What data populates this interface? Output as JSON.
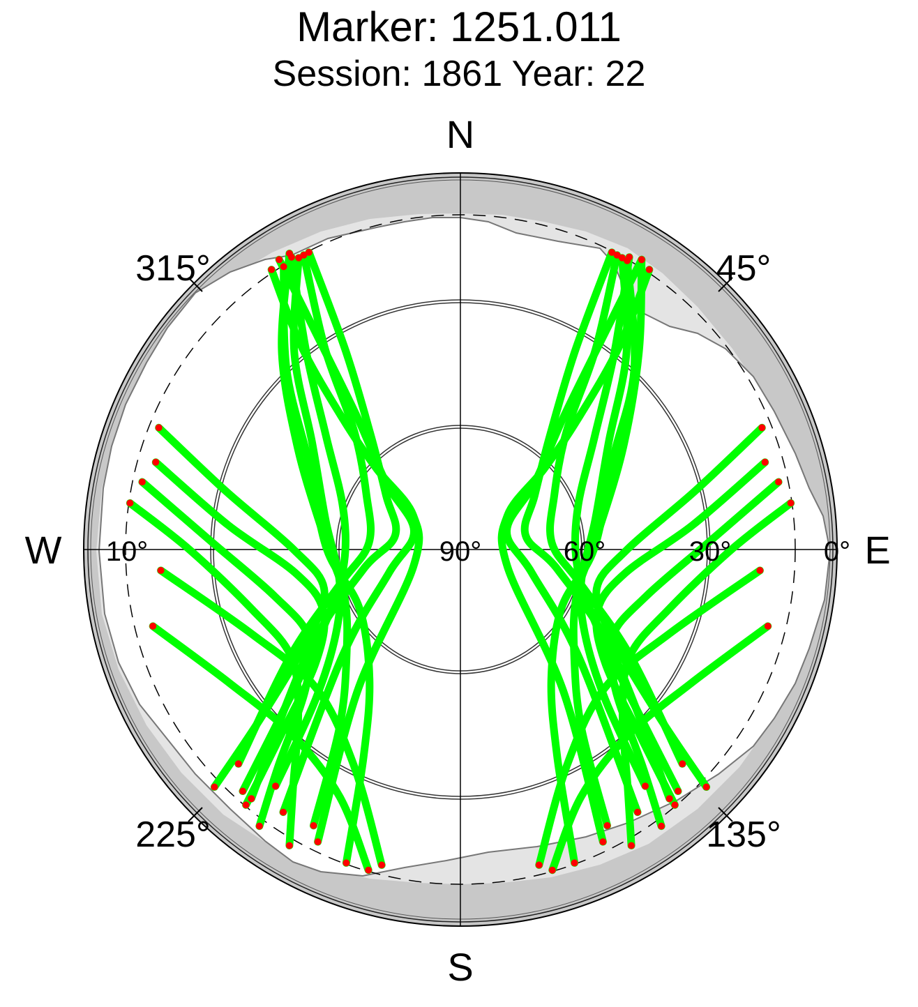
{
  "header": {
    "title": "Marker: 1251.011",
    "subtitle": "Session: 1861 Year: 22"
  },
  "chart_data": {
    "type": "scatter",
    "projection": "polar-skyplot",
    "title": "Marker: 1251.011",
    "subtitle": "Session: 1861 Year: 22",
    "cardinal_labels": [
      "N",
      "E",
      "S",
      "W"
    ],
    "azimuth_tick_labels": [
      "45°",
      "135°",
      "225°",
      "315°"
    ],
    "elevation_tick_labels": [
      "0°",
      "30°",
      "60°",
      "90°",
      "10°"
    ],
    "elevation_range": [
      0,
      90
    ],
    "elevation_mask_deg": 10,
    "colors": {
      "track": "#00ff00",
      "endpoint": "#ff0000",
      "outer_ring": "#c8c8c8",
      "horizon_mask": "#e4e4e4"
    },
    "series": [
      {
        "name": "",
        "tracks": [
          [
            [
              328,
              10
            ],
            [
              316,
              30
            ],
            [
              300,
              48
            ],
            [
              270,
              58
            ],
            [
              240,
              62
            ],
            [
              215,
              52
            ],
            [
              205,
              35
            ],
            [
              200,
              10
            ]
          ],
          [
            [
              330,
              8
            ],
            [
              318,
              26
            ],
            [
              302,
              44
            ],
            [
              276,
              57
            ],
            [
              248,
              60
            ],
            [
              226,
              52
            ],
            [
              214,
              38
            ],
            [
              208,
              15
            ]
          ],
          [
            [
              331,
              10
            ],
            [
              320,
              28
            ],
            [
              306,
              46
            ],
            [
              282,
              57
            ],
            [
              255,
              60
            ],
            [
              236,
              54
            ],
            [
              224,
              40
            ],
            [
              218,
              18
            ]
          ],
          [
            [
              330,
              9
            ],
            [
              322,
              30
            ],
            [
              310,
              48
            ],
            [
              290,
              60
            ],
            [
              264,
              62
            ],
            [
              244,
              55
            ],
            [
              230,
              38
            ],
            [
              222,
              12
            ]
          ],
          [
            [
              332,
              10
            ],
            [
              326,
              32
            ],
            [
              318,
              52
            ],
            [
              300,
              64
            ],
            [
              274,
              68
            ],
            [
              254,
              60
            ],
            [
              238,
              42
            ],
            [
              226,
              16
            ]
          ],
          [
            [
              333,
              10
            ],
            [
              330,
              35
            ],
            [
              322,
              55
            ],
            [
              306,
              68
            ],
            [
              282,
              74
            ],
            [
              258,
              66
            ],
            [
              236,
              46
            ],
            [
              220,
              12
            ]
          ],
          [
            [
              328,
              8
            ],
            [
              326,
              30
            ],
            [
              322,
              50
            ],
            [
              312,
              66
            ],
            [
              292,
              78
            ],
            [
              252,
              72
            ],
            [
              228,
              52
            ],
            [
              214,
              14
            ]
          ],
          [
            [
              326,
              9
            ],
            [
              322,
              28
            ],
            [
              318,
              48
            ],
            [
              314,
              62
            ],
            [
              306,
              76
            ],
            [
              250,
              78
            ],
            [
              216,
              48
            ],
            [
              206,
              12
            ]
          ],
          [
            [
              30,
              10
            ],
            [
              44,
              30
            ],
            [
              60,
              48
            ],
            [
              90,
              58
            ],
            [
              120,
              62
            ],
            [
              145,
              52
            ],
            [
              155,
              35
            ],
            [
              160,
              10
            ]
          ],
          [
            [
              32,
              8
            ],
            [
              42,
              26
            ],
            [
              58,
              44
            ],
            [
              84,
              57
            ],
            [
              112,
              60
            ],
            [
              134,
              52
            ],
            [
              146,
              38
            ],
            [
              152,
              15
            ]
          ],
          [
            [
              29,
              10
            ],
            [
              40,
              28
            ],
            [
              54,
              46
            ],
            [
              78,
              57
            ],
            [
              105,
              60
            ],
            [
              124,
              54
            ],
            [
              136,
              40
            ],
            [
              142,
              18
            ]
          ],
          [
            [
              30,
              9
            ],
            [
              38,
              30
            ],
            [
              50,
              48
            ],
            [
              70,
              60
            ],
            [
              96,
              62
            ],
            [
              116,
              55
            ],
            [
              130,
              38
            ],
            [
              138,
              12
            ]
          ],
          [
            [
              28,
              10
            ],
            [
              34,
              32
            ],
            [
              42,
              52
            ],
            [
              60,
              64
            ],
            [
              86,
              68
            ],
            [
              106,
              60
            ],
            [
              122,
              42
            ],
            [
              134,
              16
            ]
          ],
          [
            [
              27,
              10
            ],
            [
              30,
              35
            ],
            [
              38,
              55
            ],
            [
              54,
              68
            ],
            [
              78,
              74
            ],
            [
              102,
              66
            ],
            [
              124,
              46
            ],
            [
              140,
              12
            ]
          ],
          [
            [
              32,
              8
            ],
            [
              34,
              30
            ],
            [
              38,
              50
            ],
            [
              48,
              66
            ],
            [
              68,
              78
            ],
            [
              108,
              72
            ],
            [
              132,
              52
            ],
            [
              146,
              14
            ]
          ],
          [
            [
              34,
              9
            ],
            [
              38,
              28
            ],
            [
              42,
              48
            ],
            [
              46,
              62
            ],
            [
              54,
              76
            ],
            [
              110,
              78
            ],
            [
              144,
              48
            ],
            [
              154,
              12
            ]
          ],
          [
            [
              278,
              10
            ],
            [
              270,
              25
            ],
            [
              254,
              38
            ],
            [
              238,
              42
            ],
            [
              225,
              35
            ],
            [
              215,
              20
            ],
            [
              210,
              8
            ]
          ],
          [
            [
              282,
              12
            ],
            [
              272,
              30
            ],
            [
              256,
              44
            ],
            [
              240,
              48
            ],
            [
              228,
              40
            ],
            [
              220,
              22
            ],
            [
              216,
              8
            ]
          ],
          [
            [
              286,
              14
            ],
            [
              276,
              34
            ],
            [
              262,
              50
            ],
            [
              246,
              54
            ],
            [
              232,
              46
            ],
            [
              224,
              28
            ],
            [
              220,
              10
            ]
          ],
          [
            [
              292,
              12
            ],
            [
              284,
              32
            ],
            [
              270,
              50
            ],
            [
              254,
              56
            ],
            [
              240,
              48
            ],
            [
              230,
              28
            ],
            [
              226,
              8
            ]
          ],
          [
            [
              82,
              10
            ],
            [
              90,
              25
            ],
            [
              106,
              38
            ],
            [
              122,
              42
            ],
            [
              135,
              35
            ],
            [
              145,
              20
            ],
            [
              150,
              8
            ]
          ],
          [
            [
              78,
              12
            ],
            [
              88,
              30
            ],
            [
              104,
              44
            ],
            [
              120,
              48
            ],
            [
              132,
              40
            ],
            [
              140,
              22
            ],
            [
              144,
              8
            ]
          ],
          [
            [
              74,
              14
            ],
            [
              84,
              34
            ],
            [
              98,
              50
            ],
            [
              114,
              54
            ],
            [
              128,
              46
            ],
            [
              136,
              28
            ],
            [
              140,
              10
            ]
          ],
          [
            [
              68,
              12
            ],
            [
              76,
              32
            ],
            [
              90,
              50
            ],
            [
              106,
              56
            ],
            [
              120,
              48
            ],
            [
              130,
              28
            ],
            [
              134,
              8
            ]
          ],
          [
            [
              256,
              14
            ],
            [
              240,
              26
            ],
            [
              222,
              30
            ],
            [
              206,
              24
            ],
            [
              196,
              10
            ]
          ],
          [
            [
              104,
              14
            ],
            [
              120,
              26
            ],
            [
              138,
              30
            ],
            [
              154,
              24
            ],
            [
              164,
              10
            ]
          ],
          [
            [
              266,
              18
            ],
            [
              248,
              36
            ],
            [
              226,
              42
            ],
            [
              206,
              32
            ],
            [
              194,
              12
            ]
          ],
          [
            [
              94,
              18
            ],
            [
              112,
              36
            ],
            [
              134,
              42
            ],
            [
              154,
              32
            ],
            [
              166,
              12
            ]
          ]
        ]
      }
    ]
  }
}
